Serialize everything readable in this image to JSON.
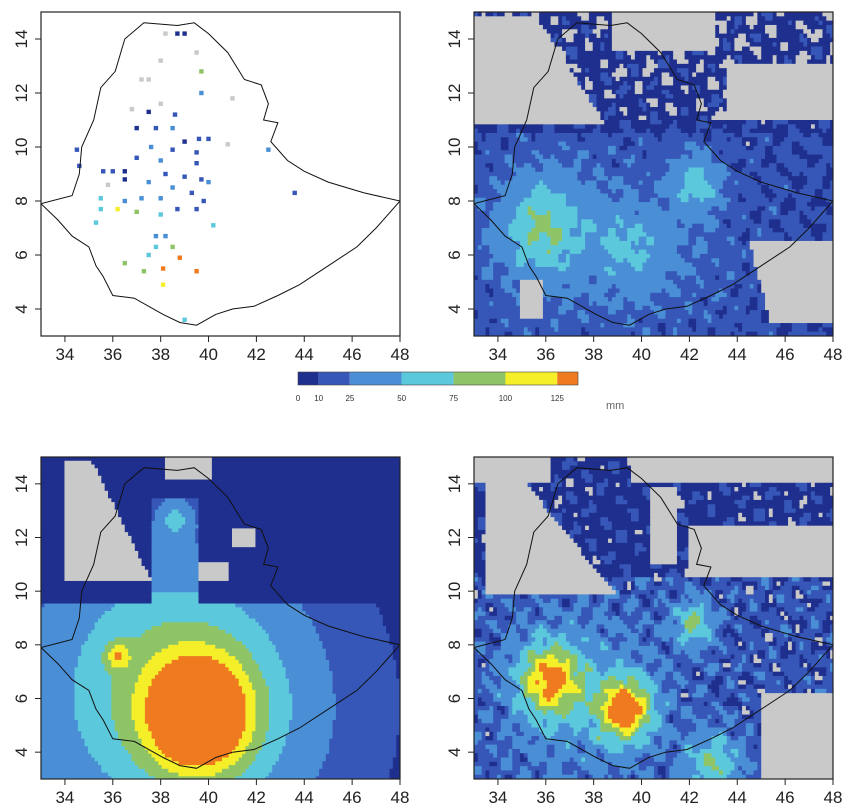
{
  "axes": {
    "x_ticks": [
      34,
      36,
      38,
      40,
      42,
      44,
      46,
      48
    ],
    "y_ticks": [
      4,
      6,
      8,
      10,
      12,
      14
    ],
    "xlim": [
      33,
      48
    ],
    "ylim": [
      3,
      15
    ]
  },
  "colors": {
    "masked": "#c9c9c9",
    "border": "#111111",
    "frame": "#222222"
  },
  "colorbar": {
    "unit": "mm",
    "bounds": [
      0,
      10,
      25,
      50,
      75,
      100,
      125,
      135
    ],
    "tick_labels": [
      "0",
      "10",
      "25",
      "50",
      "75",
      "100",
      "125"
    ],
    "colors": [
      "#1f2f8e",
      "#3657b8",
      "#4a8fd6",
      "#5cc8dc",
      "#8fc466",
      "#f5ef2a",
      "#ef7a1f"
    ]
  },
  "panels": [
    {
      "id": "stations",
      "type": "station-points"
    },
    {
      "id": "gridded-top-right",
      "type": "raster"
    },
    {
      "id": "interpolated-bottom-left",
      "type": "raster"
    },
    {
      "id": "gridded-bottom-right",
      "type": "raster"
    }
  ],
  "stations": [
    {
      "lon": 39.0,
      "lat": 14.2,
      "mm": 5
    },
    {
      "lon": 38.7,
      "lat": 14.2,
      "mm": 3
    },
    {
      "lon": 38.2,
      "lat": 14.2,
      "mm": -1
    },
    {
      "lon": 39.5,
      "lat": 13.5,
      "mm": -1
    },
    {
      "lon": 38.0,
      "lat": 13.2,
      "mm": -1
    },
    {
      "lon": 39.7,
      "lat": 12.8,
      "mm": 80
    },
    {
      "lon": 37.2,
      "lat": 12.5,
      "mm": -1
    },
    {
      "lon": 37.5,
      "lat": 12.5,
      "mm": -1
    },
    {
      "lon": 39.7,
      "lat": 12.0,
      "mm": 40
    },
    {
      "lon": 41.0,
      "lat": 11.8,
      "mm": -1
    },
    {
      "lon": 38.0,
      "lat": 11.6,
      "mm": -1
    },
    {
      "lon": 36.8,
      "lat": 11.4,
      "mm": -1
    },
    {
      "lon": 37.5,
      "lat": 11.3,
      "mm": 5
    },
    {
      "lon": 38.6,
      "lat": 11.2,
      "mm": 20
    },
    {
      "lon": 37.8,
      "lat": 10.7,
      "mm": 15
    },
    {
      "lon": 37.0,
      "lat": 10.7,
      "mm": 5
    },
    {
      "lon": 38.5,
      "lat": 10.7,
      "mm": 30
    },
    {
      "lon": 39.6,
      "lat": 10.3,
      "mm": 12
    },
    {
      "lon": 40.0,
      "lat": 10.3,
      "mm": 20
    },
    {
      "lon": 40.8,
      "lat": 10.1,
      "mm": -1
    },
    {
      "lon": 39.0,
      "lat": 10.2,
      "mm": 8
    },
    {
      "lon": 37.6,
      "lat": 10.0,
      "mm": 28
    },
    {
      "lon": 38.5,
      "lat": 9.9,
      "mm": 12
    },
    {
      "lon": 42.5,
      "lat": 9.9,
      "mm": 35
    },
    {
      "lon": 34.5,
      "lat": 9.9,
      "mm": 10
    },
    {
      "lon": 39.5,
      "lat": 9.8,
      "mm": 20
    },
    {
      "lon": 37.0,
      "lat": 9.6,
      "mm": 15
    },
    {
      "lon": 38.0,
      "lat": 9.5,
      "mm": 25
    },
    {
      "lon": 39.5,
      "lat": 9.4,
      "mm": 12
    },
    {
      "lon": 34.6,
      "lat": 9.3,
      "mm": 10
    },
    {
      "lon": 36.5,
      "lat": 9.1,
      "mm": 5
    },
    {
      "lon": 35.6,
      "lat": 9.1,
      "mm": 20
    },
    {
      "lon": 36.0,
      "lat": 9.1,
      "mm": 12
    },
    {
      "lon": 38.2,
      "lat": 9.0,
      "mm": 20
    },
    {
      "lon": 39.0,
      "lat": 8.9,
      "mm": 15
    },
    {
      "lon": 39.7,
      "lat": 8.8,
      "mm": 10
    },
    {
      "lon": 36.5,
      "lat": 8.8,
      "mm": 5
    },
    {
      "lon": 37.5,
      "lat": 8.7,
      "mm": 30
    },
    {
      "lon": 40.0,
      "lat": 8.7,
      "mm": 25
    },
    {
      "lon": 35.8,
      "lat": 8.6,
      "mm": -1
    },
    {
      "lon": 38.5,
      "lat": 8.5,
      "mm": 28
    },
    {
      "lon": 43.6,
      "lat": 8.3,
      "mm": 12
    },
    {
      "lon": 39.3,
      "lat": 8.3,
      "mm": 20
    },
    {
      "lon": 37.2,
      "lat": 8.1,
      "mm": 35
    },
    {
      "lon": 38.0,
      "lat": 8.1,
      "mm": 28
    },
    {
      "lon": 35.5,
      "lat": 8.1,
      "mm": 55
    },
    {
      "lon": 36.5,
      "lat": 8.0,
      "mm": 45
    },
    {
      "lon": 39.8,
      "lat": 8.0,
      "mm": 15
    },
    {
      "lon": 39.5,
      "lat": 7.7,
      "mm": 10
    },
    {
      "lon": 35.5,
      "lat": 7.7,
      "mm": 55
    },
    {
      "lon": 36.2,
      "lat": 7.7,
      "mm": 105
    },
    {
      "lon": 37.0,
      "lat": 7.6,
      "mm": 80
    },
    {
      "lon": 38.0,
      "lat": 7.5,
      "mm": 60
    },
    {
      "lon": 38.7,
      "lat": 7.7,
      "mm": 15
    },
    {
      "lon": 35.3,
      "lat": 7.2,
      "mm": 55
    },
    {
      "lon": 40.2,
      "lat": 7.1,
      "mm": 55
    },
    {
      "lon": 37.8,
      "lat": 6.7,
      "mm": 40
    },
    {
      "lon": 38.2,
      "lat": 6.7,
      "mm": 40
    },
    {
      "lon": 37.8,
      "lat": 6.3,
      "mm": 55
    },
    {
      "lon": 38.5,
      "lat": 6.3,
      "mm": 80
    },
    {
      "lon": 37.5,
      "lat": 6.0,
      "mm": 70
    },
    {
      "lon": 36.5,
      "lat": 5.7,
      "mm": 80
    },
    {
      "lon": 38.8,
      "lat": 5.9,
      "mm": 130
    },
    {
      "lon": 38.1,
      "lat": 5.5,
      "mm": 130
    },
    {
      "lon": 37.3,
      "lat": 5.4,
      "mm": 80
    },
    {
      "lon": 39.5,
      "lat": 5.4,
      "mm": 140
    },
    {
      "lon": 38.1,
      "lat": 4.9,
      "mm": 110
    },
    {
      "lon": 39.0,
      "lat": 3.6,
      "mm": 60
    }
  ]
}
